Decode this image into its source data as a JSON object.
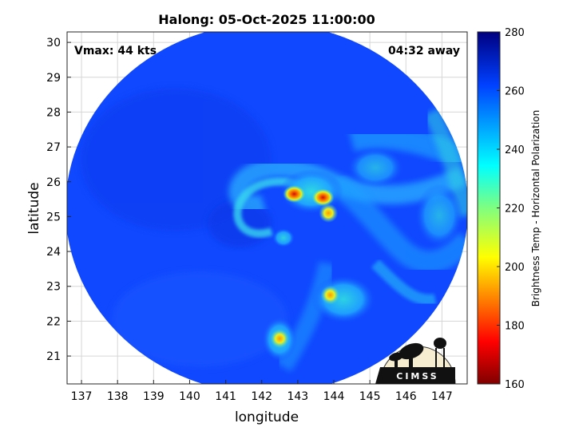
{
  "chart_data": {
    "type": "heatmap",
    "title": "Halong: 05-Oct-2025 11:00:00",
    "xlabel": "longitude",
    "ylabel": "latitude",
    "xlim": [
      136.6,
      147.7
    ],
    "ylim": [
      20.2,
      30.3
    ],
    "xticks": [
      137,
      138,
      139,
      140,
      141,
      142,
      143,
      144,
      145,
      146,
      147
    ],
    "yticks": [
      21,
      22,
      23,
      24,
      25,
      26,
      27,
      28,
      29,
      30
    ],
    "grid": true,
    "annotations": {
      "vmax": "Vmax: 44 kts",
      "time_away": "04:32 away"
    },
    "colorbar": {
      "label": "Brightness Temp - Horizontal Polarization",
      "min": 160,
      "max": 280,
      "ticks": [
        160,
        180,
        200,
        220,
        240,
        260,
        280
      ],
      "colormap": "jet"
    },
    "swath_center": [
      142.0,
      25.1
    ],
    "background_temp": 262,
    "cold_cores": [
      {
        "lon": 142.9,
        "lat": 25.65,
        "temp": 185
      },
      {
        "lon": 143.7,
        "lat": 25.55,
        "temp": 188
      },
      {
        "lon": 143.85,
        "lat": 25.1,
        "temp": 205
      },
      {
        "lon": 143.9,
        "lat": 22.75,
        "temp": 200
      },
      {
        "lon": 142.5,
        "lat": 21.5,
        "temp": 208
      }
    ]
  },
  "logo": {
    "text": "CIMSS"
  }
}
